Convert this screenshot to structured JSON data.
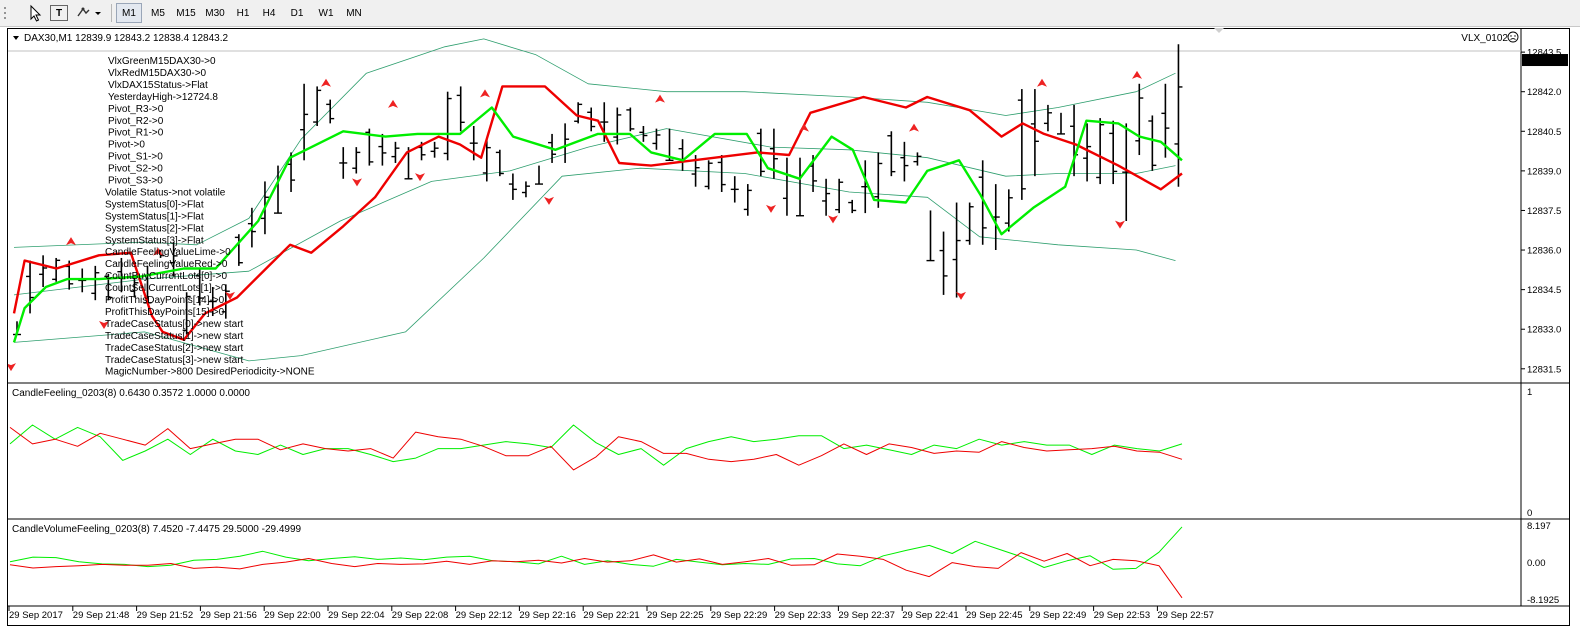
{
  "toolbar": {
    "tools": [
      "cursor-icon",
      "text-tool-icon",
      "objects-dropdown-icon"
    ],
    "text_tool_label": "T",
    "timeframes": [
      "M1",
      "M5",
      "M15",
      "M30",
      "H1",
      "H4",
      "D1",
      "W1",
      "MN"
    ],
    "active_timeframe": "M1"
  },
  "main_chart": {
    "header": "DAX30,M1  12839.9 12843.2 12838.4 12843.2",
    "expert_label": "VLX_0102",
    "current_price": "12843.2",
    "yaxis_labels": [
      "12843.5",
      "12842.0",
      "12840.5",
      "12839.0",
      "12837.5",
      "12836.0",
      "12834.5",
      "12833.0",
      "12831.5"
    ],
    "yrange": [
      12831.0,
      12844.3
    ],
    "info_lines": [
      "VlxGreenM15DAX30->0",
      "VlxRedM15DAX30->0",
      "VlxDAX15Status->Flat",
      "YesterdayHigh->12724.8",
      "Pivot_R3->0",
      "Pivot_R2->0",
      "Pivot_R1->0",
      "Pivot->0",
      "Pivot_S1->0",
      "Pivot_S2->0",
      "Pivot_S3->0",
      "Volatile Status->not volatile",
      "SystemStatus[0]->Flat",
      "SystemStatus[1]->Flat",
      "SystemStatus[2]->Flat",
      "SystemStatus[3]->Flat",
      "CandleFeelingValueLime->0",
      "CandleFeelingValueRed->0",
      "CountBuyCurrentLots[0]->0",
      "CountSellCurrentLots[1]->0",
      "ProfitThisDayPoints[14]->0",
      "ProfitThisDayPoints[15]->0",
      "TradeCaseStatus[0]->new start",
      "TradeCaseStatus[1]->new start",
      "TradeCaseStatus[2]->new start",
      "TradeCaseStatus[3]->new start",
      "MagicNumber->800 DesiredPeriodicity->NONE"
    ]
  },
  "candle_feeling": {
    "header": "CandleFeeling_0203(8) 0.6430 0.3572 1.0000 0.0000",
    "yaxis_labels": [
      "1",
      "0"
    ]
  },
  "candle_volume_feeling": {
    "header": "CandleVolumeFeeling_0203(8) 7.4520 -7.4475 29.5000 -29.4999",
    "yaxis_labels": [
      "8.197",
      "0.00",
      "-8.1925"
    ]
  },
  "time_labels": [
    "29 Sep 2017",
    "29 Sep 21:48",
    "29 Sep 21:52",
    "29 Sep 21:56",
    "29 Sep 22:00",
    "29 Sep 22:04",
    "29 Sep 22:08",
    "29 Sep 22:12",
    "29 Sep 22:16",
    "29 Sep 22:21",
    "29 Sep 22:25",
    "29 Sep 22:29",
    "29 Sep 22:33",
    "29 Sep 22:37",
    "29 Sep 22:41",
    "29 Sep 22:45",
    "29 Sep 22:49",
    "29 Sep 22:53",
    "29 Sep 22:57"
  ],
  "colors": {
    "bull_line": "#00ee00",
    "bear_line": "#ee0000",
    "band": "#2e9e6e",
    "bars": "#000000",
    "arrows": "#ee2222",
    "price_box": "#000000"
  },
  "chart_data": [
    {
      "type": "line",
      "panel": "price",
      "x_step": "1 minute",
      "bars_ohlc_high": [
        12833.3,
        12835.6,
        12835.8,
        12835.7,
        12835.6,
        12835.3,
        12835.4,
        12835.1,
        12835.7,
        12835.0,
        12835.4,
        12836.0,
        12836.3,
        12834.4,
        12835.3,
        12834.6,
        12834.7,
        12836.6,
        12837.6,
        12838.6,
        12839.2,
        12839.7,
        12842.3,
        12842.2,
        12841.7,
        12839.9,
        12839.9,
        12840.6,
        12840.4,
        12840.1,
        12839.9,
        12840.1,
        12840.1,
        12842.0,
        12842.2,
        12840.7,
        12840.2,
        12839.8,
        12838.9,
        12838.6,
        12839.2,
        12840.4,
        12840.8,
        12841.6,
        12841.4,
        12841.6,
        12841.4,
        12841.4,
        12840.7,
        12840.6,
        12840.6,
        12840.2,
        12839.6,
        12839.4,
        12839.6,
        12838.8,
        12838.5,
        12840.6,
        12840.6,
        12839.5,
        12839.5,
        12839.6,
        12838.7,
        12838.7,
        12837.9,
        12839.4,
        12839.7,
        12840.5,
        12840.1,
        12839.7,
        12837.5,
        12836.7,
        12837.8,
        12837.8,
        12839.4,
        12838.5,
        12838.3,
        12842.1,
        12842.1,
        12841.5,
        12841.2,
        12841.5,
        12840.8,
        12841.0,
        12840.9,
        12840.8,
        12842.3,
        12841.1,
        12842.3,
        12843.8
      ],
      "bars_ohlc_low": [
        12832.8,
        12833.6,
        12834.6,
        12834.8,
        12834.5,
        12834.4,
        12834.1,
        12834.1,
        12834.4,
        12834.2,
        12834.0,
        12835.7,
        12835.0,
        12832.8,
        12833.9,
        12833.5,
        12833.4,
        12835.4,
        12836.1,
        12836.6,
        12837.4,
        12838.2,
        12839.4,
        12840.7,
        12840.8,
        12838.7,
        12838.9,
        12839.2,
        12839.2,
        12839.3,
        12838.7,
        12839.4,
        12839.5,
        12839.4,
        12840.5,
        12839.4,
        12838.6,
        12838.8,
        12837.9,
        12838.0,
        12838.5,
        12839.3,
        12839.3,
        12840.8,
        12840.5,
        12840.1,
        12840.0,
        12840.5,
        12840.1,
        12839.8,
        12839.4,
        12839.0,
        12838.4,
        12838.3,
        12838.2,
        12837.8,
        12837.3,
        12838.8,
        12838.7,
        12837.3,
        12837.3,
        12838.2,
        12837.3,
        12837.4,
        12837.4,
        12837.4,
        12837.6,
        12838.8,
        12838.6,
        12839.2,
        12835.6,
        12834.3,
        12834.2,
        12836.2,
        12836.2,
        12836.0,
        12836.7,
        12837.9,
        12838.8,
        12840.5,
        12840.4,
        12838.8,
        12838.6,
        12838.5,
        12838.5,
        12837.1,
        12839.6,
        12839.0,
        12839.5,
        12838.4
      ]
    },
    {
      "type": "line",
      "panel": "CandleFeeling_0203(8)",
      "ylim": [
        0,
        1
      ],
      "series": [
        {
          "name": "",
          "color": "#00ee00",
          "values": [
            0.56,
            0.72,
            0.6,
            0.7,
            0.62,
            0.42,
            0.5,
            0.6,
            0.47,
            0.6,
            0.5,
            0.47,
            0.55,
            0.47,
            0.52,
            0.52,
            0.47,
            0.41,
            0.44,
            0.52,
            0.52,
            0.55,
            0.58,
            0.56,
            0.53,
            0.72,
            0.57,
            0.47,
            0.52,
            0.38,
            0.52,
            0.58,
            0.62,
            0.58,
            0.6,
            0.63,
            0.63,
            0.52,
            0.55,
            0.51,
            0.47,
            0.55,
            0.52,
            0.6,
            0.55,
            0.58,
            0.55,
            0.55,
            0.47,
            0.55,
            0.52,
            0.5,
            0.56
          ]
        },
        {
          "name": "",
          "color": "#ee0000",
          "values": [
            0.7,
            0.56,
            0.6,
            0.54,
            0.65,
            0.6,
            0.55,
            0.69,
            0.52,
            0.56,
            0.6,
            0.6,
            0.51,
            0.56,
            0.52,
            0.5,
            0.52,
            0.44,
            0.66,
            0.62,
            0.6,
            0.54,
            0.46,
            0.46,
            0.54,
            0.34,
            0.45,
            0.62,
            0.58,
            0.48,
            0.48,
            0.43,
            0.41,
            0.43,
            0.47,
            0.38,
            0.46,
            0.56,
            0.47,
            0.56,
            0.53,
            0.48,
            0.5,
            0.49,
            0.58,
            0.53,
            0.5,
            0.51,
            0.52,
            0.54,
            0.5,
            0.49,
            0.43
          ]
        }
      ]
    },
    {
      "type": "line",
      "panel": "CandleVolumeFeeling_0203(8)",
      "ylim": [
        -8.1925,
        8.197
      ],
      "series": [
        {
          "name": "",
          "color": "#00ee00",
          "values": [
            0.3,
            1.3,
            1.2,
            0.3,
            -0.2,
            -0.3,
            -0.8,
            -0.5,
            0.6,
            0.8,
            1.5,
            2.6,
            1.3,
            0.5,
            1.0,
            1.4,
            0.8,
            1.1,
            0.7,
            1.3,
            1.5,
            0.5,
            0.3,
            -0.2,
            1.5,
            -0.3,
            0.5,
            -0.3,
            -0.7,
            0.8,
            0.2,
            -0.4,
            -0.1,
            -0.3,
            0.9,
            1.0,
            -0.2,
            -0.6,
            1.6,
            2.8,
            3.9,
            2.1,
            4.8,
            3.1,
            1.4,
            -1.0,
            0.5,
            1.6,
            -1.4,
            -1.2,
            2.4,
            8.0
          ]
        },
        {
          "name": "",
          "color": "#ee0000",
          "values": [
            -0.4,
            -1.1,
            -0.8,
            -0.6,
            -0.3,
            -0.5,
            -0.5,
            -0.1,
            -1.2,
            -0.9,
            -1.3,
            -0.3,
            0.2,
            1.0,
            -0.1,
            -0.8,
            -0.1,
            -0.3,
            -0.2,
            0.4,
            -0.3,
            0.5,
            0.3,
            0.6,
            0.0,
            1.0,
            0.2,
            0.5,
            1.8,
            0.2,
            0.9,
            -0.3,
            0.3,
            1.0,
            -0.5,
            -0.4,
            2.0,
            1.5,
            0.8,
            -1.6,
            -3.0,
            0.1,
            -0.8,
            -1.2,
            2.3,
            0.4,
            2.1,
            -0.6,
            0.8,
            0.5,
            -0.6,
            -7.7
          ]
        }
      ]
    }
  ]
}
